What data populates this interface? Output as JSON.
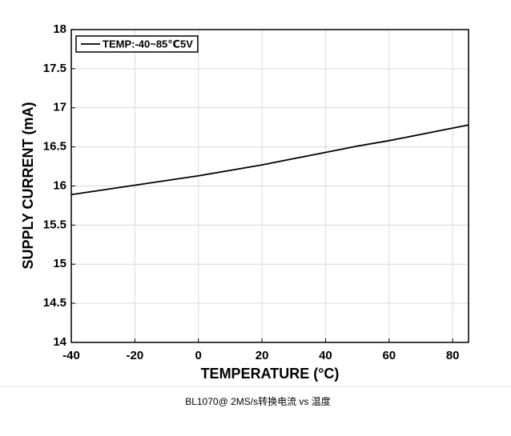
{
  "chart_data": {
    "type": "line",
    "x": [
      -40,
      -30,
      -20,
      -10,
      0,
      10,
      20,
      30,
      40,
      50,
      60,
      70,
      80,
      85
    ],
    "series": [
      {
        "name": "TEMP:-40~85℃5V",
        "color": "#000000",
        "values": [
          15.89,
          15.95,
          16.01,
          16.07,
          16.13,
          16.2,
          16.27,
          16.35,
          16.43,
          16.51,
          16.58,
          16.66,
          16.74,
          16.78
        ]
      }
    ],
    "xlabel": "TEMPERATURE (°C)",
    "ylabel": "SUPPLY CURRENT (mA)",
    "xlim": [
      -40,
      85
    ],
    "xticks": [
      -40,
      -20,
      0,
      20,
      40,
      60,
      80
    ],
    "ylim": [
      14,
      18
    ],
    "yticks": [
      14,
      14.5,
      15,
      15.5,
      16,
      16.5,
      17,
      17.5,
      18
    ],
    "grid": true,
    "legend": "upper left"
  },
  "caption": "BL1070@ 2MS/s转换电流 vs 温度"
}
